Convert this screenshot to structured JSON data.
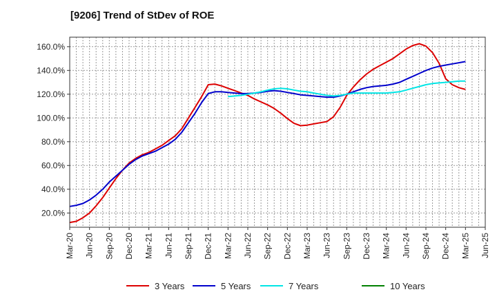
{
  "chart_data": {
    "type": "line",
    "title": "[9206]  Trend of StDev of ROE",
    "xlabel": "",
    "ylabel": "",
    "ylim": [
      8,
      168
    ],
    "yticks": [
      20,
      40,
      60,
      80,
      100,
      120,
      140,
      160
    ],
    "ytick_labels": [
      "20.0%",
      "40.0%",
      "60.0%",
      "80.0%",
      "100.0%",
      "120.0%",
      "140.0%",
      "160.0%"
    ],
    "x_range": [
      "2020-03",
      "2025-06"
    ],
    "xtick_labels": [
      "Mar-20",
      "Jun-20",
      "Sep-20",
      "Dec-20",
      "Mar-21",
      "Jun-21",
      "Sep-21",
      "Dec-21",
      "Mar-22",
      "Jun-22",
      "Sep-22",
      "Dec-22",
      "Mar-23",
      "Jun-23",
      "Sep-23",
      "Dec-23",
      "Mar-24",
      "Jun-24",
      "Sep-24",
      "Dec-24",
      "Mar-25",
      "Jun-25"
    ],
    "grid": true,
    "legend_position": "bottom",
    "series": [
      {
        "name": "3 Years",
        "color": "#dd0000",
        "points": [
          [
            "2020-03",
            12
          ],
          [
            "2020-04",
            13
          ],
          [
            "2020-05",
            16
          ],
          [
            "2020-06",
            20
          ],
          [
            "2020-07",
            26
          ],
          [
            "2020-08",
            33
          ],
          [
            "2020-09",
            41
          ],
          [
            "2020-10",
            49
          ],
          [
            "2020-11",
            56
          ],
          [
            "2020-12",
            62
          ],
          [
            "2021-01",
            66
          ],
          [
            "2021-02",
            69
          ],
          [
            "2021-03",
            71
          ],
          [
            "2021-04",
            74
          ],
          [
            "2021-05",
            77
          ],
          [
            "2021-06",
            81
          ],
          [
            "2021-07",
            85
          ],
          [
            "2021-08",
            91
          ],
          [
            "2021-09",
            100
          ],
          [
            "2021-10",
            109
          ],
          [
            "2021-11",
            118
          ],
          [
            "2021-12",
            128
          ],
          [
            "2022-01",
            128.5
          ],
          [
            "2022-02",
            127
          ],
          [
            "2022-03",
            125
          ],
          [
            "2022-04",
            123
          ],
          [
            "2022-05",
            121
          ],
          [
            "2022-06",
            119
          ],
          [
            "2022-07",
            116
          ],
          [
            "2022-08",
            113.5
          ],
          [
            "2022-09",
            111
          ],
          [
            "2022-10",
            108
          ],
          [
            "2022-11",
            104
          ],
          [
            "2022-12",
            99.5
          ],
          [
            "2023-01",
            95.5
          ],
          [
            "2023-02",
            93.5
          ],
          [
            "2023-03",
            94
          ],
          [
            "2023-04",
            95
          ],
          [
            "2023-05",
            96
          ],
          [
            "2023-06",
            97
          ],
          [
            "2023-07",
            101
          ],
          [
            "2023-08",
            109
          ],
          [
            "2023-09",
            119
          ],
          [
            "2023-10",
            126
          ],
          [
            "2023-11",
            132
          ],
          [
            "2023-12",
            137
          ],
          [
            "2024-01",
            141
          ],
          [
            "2024-02",
            144
          ],
          [
            "2024-03",
            147
          ],
          [
            "2024-04",
            150
          ],
          [
            "2024-05",
            154
          ],
          [
            "2024-06",
            158
          ],
          [
            "2024-07",
            161
          ],
          [
            "2024-08",
            162.5
          ],
          [
            "2024-09",
            160.5
          ],
          [
            "2024-10",
            155
          ],
          [
            "2024-11",
            146
          ],
          [
            "2024-12",
            133
          ],
          [
            "2025-01",
            128
          ],
          [
            "2025-02",
            125.5
          ],
          [
            "2025-03",
            124
          ]
        ]
      },
      {
        "name": "5 Years",
        "color": "#0000cc",
        "points": [
          [
            "2020-03",
            25.5
          ],
          [
            "2020-04",
            26.5
          ],
          [
            "2020-05",
            28
          ],
          [
            "2020-06",
            31
          ],
          [
            "2020-07",
            35
          ],
          [
            "2020-08",
            40
          ],
          [
            "2020-09",
            46
          ],
          [
            "2020-10",
            51
          ],
          [
            "2020-11",
            56
          ],
          [
            "2020-12",
            61
          ],
          [
            "2021-01",
            65
          ],
          [
            "2021-02",
            68
          ],
          [
            "2021-03",
            70
          ],
          [
            "2021-04",
            72
          ],
          [
            "2021-05",
            75
          ],
          [
            "2021-06",
            78
          ],
          [
            "2021-07",
            82
          ],
          [
            "2021-08",
            88
          ],
          [
            "2021-09",
            96
          ],
          [
            "2021-10",
            104
          ],
          [
            "2021-11",
            113
          ],
          [
            "2021-12",
            120.5
          ],
          [
            "2022-01",
            122
          ],
          [
            "2022-02",
            122
          ],
          [
            "2022-03",
            121.5
          ],
          [
            "2022-04",
            121
          ],
          [
            "2022-05",
            120.5
          ],
          [
            "2022-06",
            120.5
          ],
          [
            "2022-07",
            121
          ],
          [
            "2022-08",
            121.5
          ],
          [
            "2022-09",
            122.5
          ],
          [
            "2022-10",
            123
          ],
          [
            "2022-11",
            122.5
          ],
          [
            "2022-12",
            121.5
          ],
          [
            "2023-01",
            120.5
          ],
          [
            "2023-02",
            119.5
          ],
          [
            "2023-03",
            119
          ],
          [
            "2023-04",
            118.5
          ],
          [
            "2023-05",
            118
          ],
          [
            "2023-06",
            117.5
          ],
          [
            "2023-07",
            117.5
          ],
          [
            "2023-08",
            118.5
          ],
          [
            "2023-09",
            120
          ],
          [
            "2023-10",
            122
          ],
          [
            "2023-11",
            124
          ],
          [
            "2023-12",
            125.5
          ],
          [
            "2024-01",
            126.5
          ],
          [
            "2024-02",
            127
          ],
          [
            "2024-03",
            127.5
          ],
          [
            "2024-04",
            128.5
          ],
          [
            "2024-05",
            130
          ],
          [
            "2024-06",
            132.5
          ],
          [
            "2024-07",
            135
          ],
          [
            "2024-08",
            137.5
          ],
          [
            "2024-09",
            140
          ],
          [
            "2024-10",
            142
          ],
          [
            "2024-11",
            143.5
          ],
          [
            "2024-12",
            144.5
          ],
          [
            "2025-01",
            145.5
          ],
          [
            "2025-02",
            146.5
          ],
          [
            "2025-03",
            147.5
          ]
        ]
      },
      {
        "name": "7 Years",
        "color": "#00e5e5",
        "points": [
          [
            "2022-03",
            118
          ],
          [
            "2022-04",
            118.5
          ],
          [
            "2022-05",
            119
          ],
          [
            "2022-06",
            120
          ],
          [
            "2022-07",
            121
          ],
          [
            "2022-08",
            122
          ],
          [
            "2022-09",
            123.5
          ],
          [
            "2022-10",
            124.5
          ],
          [
            "2022-11",
            125
          ],
          [
            "2022-12",
            124.5
          ],
          [
            "2023-01",
            123.5
          ],
          [
            "2023-02",
            122.5
          ],
          [
            "2023-03",
            122
          ],
          [
            "2023-04",
            121
          ],
          [
            "2023-05",
            120
          ],
          [
            "2023-06",
            119
          ],
          [
            "2023-07",
            118.5
          ],
          [
            "2023-08",
            119
          ],
          [
            "2023-09",
            120
          ],
          [
            "2023-10",
            121
          ],
          [
            "2023-11",
            121
          ],
          [
            "2023-12",
            121
          ],
          [
            "2024-01",
            121
          ],
          [
            "2024-02",
            121
          ],
          [
            "2024-03",
            121
          ],
          [
            "2024-04",
            121.5
          ],
          [
            "2024-05",
            122
          ],
          [
            "2024-06",
            123.5
          ],
          [
            "2024-07",
            125
          ],
          [
            "2024-08",
            126.5
          ],
          [
            "2024-09",
            128
          ],
          [
            "2024-10",
            129
          ],
          [
            "2024-11",
            129.5
          ],
          [
            "2024-12",
            130
          ],
          [
            "2025-01",
            130.5
          ],
          [
            "2025-02",
            131
          ],
          [
            "2025-03",
            131
          ]
        ]
      },
      {
        "name": "10 Years",
        "color": "#008000",
        "points": []
      }
    ]
  }
}
